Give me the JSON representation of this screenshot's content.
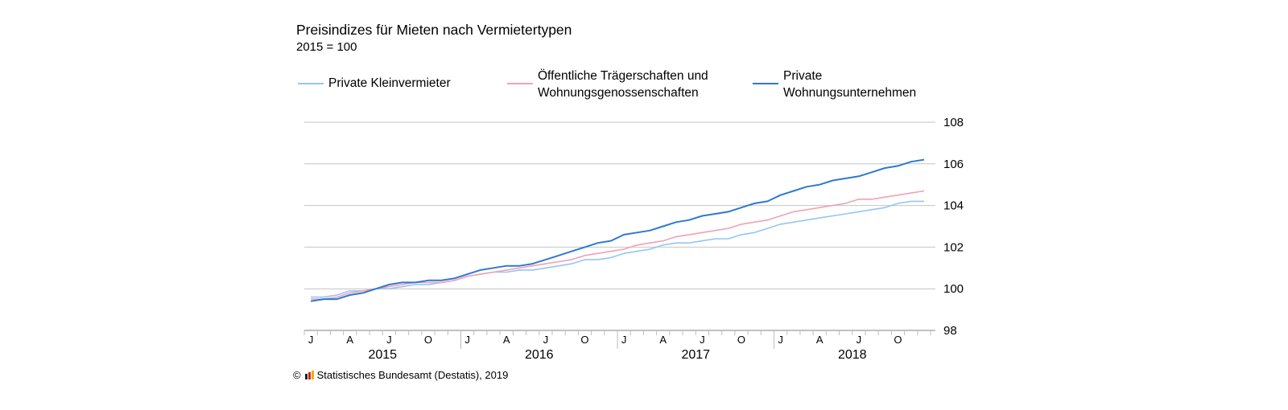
{
  "chart_data": {
    "type": "line",
    "title": "Preisindizes für Mieten nach Vermietertypen",
    "subtitle": "2015 = 100",
    "ylim": [
      98,
      108
    ],
    "yticks": [
      "98",
      "100",
      "102",
      "104",
      "106",
      "108"
    ],
    "y_axis_position": "right",
    "grid": true,
    "legend_placement": "top",
    "x_month_labels": [
      "J",
      "A",
      "J",
      "O"
    ],
    "x_year_labels": [
      "2015",
      "2016",
      "2017",
      "2018"
    ],
    "x_range": [
      "2015-01",
      "2018-12"
    ],
    "series": [
      {
        "name": "Private Kleinvermieter",
        "color": "#93c6f4",
        "values": [
          99.6,
          99.6,
          99.7,
          99.9,
          99.9,
          100.0,
          100.0,
          100.1,
          100.2,
          100.2,
          100.3,
          100.4,
          100.6,
          100.7,
          100.8,
          100.8,
          100.9,
          100.9,
          101.0,
          101.1,
          101.2,
          101.4,
          101.4,
          101.5,
          101.7,
          101.8,
          101.9,
          102.1,
          102.2,
          102.2,
          102.3,
          102.4,
          102.4,
          102.6,
          102.7,
          102.9,
          103.1,
          103.2,
          103.3,
          103.4,
          103.5,
          103.6,
          103.7,
          103.8,
          103.9,
          104.1,
          104.2,
          104.2
        ]
      },
      {
        "name": "Öffentliche Trägerschaften und Wohnungsgenossenschaften",
        "name_lines": [
          "Öffentliche Trägerschaften und",
          "Wohnungsgenossenschaften"
        ],
        "color": "#f2a1b4",
        "values": [
          99.5,
          99.5,
          99.6,
          99.8,
          99.9,
          100.0,
          100.1,
          100.2,
          100.3,
          100.3,
          100.3,
          100.4,
          100.6,
          100.7,
          100.8,
          100.9,
          101.0,
          101.1,
          101.2,
          101.3,
          101.4,
          101.6,
          101.7,
          101.8,
          101.9,
          102.1,
          102.2,
          102.3,
          102.5,
          102.6,
          102.7,
          102.8,
          102.9,
          103.1,
          103.2,
          103.3,
          103.5,
          103.7,
          103.8,
          103.9,
          104.0,
          104.1,
          104.3,
          104.3,
          104.4,
          104.5,
          104.6,
          104.7
        ]
      },
      {
        "name": "Private Wohnungsunternehmen",
        "name_lines": [
          "Private",
          "Wohnungsunternehmen"
        ],
        "color": "#2f78d2",
        "values": [
          99.4,
          99.5,
          99.5,
          99.7,
          99.8,
          100.0,
          100.2,
          100.3,
          100.3,
          100.4,
          100.4,
          100.5,
          100.7,
          100.9,
          101.0,
          101.1,
          101.1,
          101.2,
          101.4,
          101.6,
          101.8,
          102.0,
          102.2,
          102.3,
          102.6,
          102.7,
          102.8,
          103.0,
          103.2,
          103.3,
          103.5,
          103.6,
          103.7,
          103.9,
          104.1,
          104.2,
          104.5,
          104.7,
          104.9,
          105.0,
          105.2,
          105.3,
          105.4,
          105.6,
          105.8,
          105.9,
          106.1,
          106.2
        ]
      }
    ]
  },
  "footer": {
    "copyright": "©",
    "source": "Statistisches Bundesamt (Destatis), 2019"
  }
}
